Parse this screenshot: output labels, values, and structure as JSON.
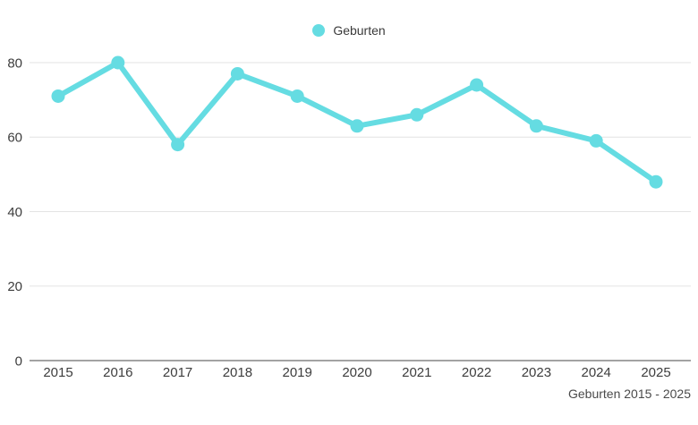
{
  "page": {
    "background": "#ffffff"
  },
  "legend": {
    "items": [
      {
        "label": "Geburten",
        "color": "#65dce2"
      }
    ]
  },
  "footer": {
    "caption": "Geburten 2015 - 2025"
  },
  "chart_data": {
    "type": "line",
    "title": "",
    "xlabel": "",
    "ylabel": "",
    "categories": [
      "2015",
      "2016",
      "2017",
      "2018",
      "2019",
      "2020",
      "2021",
      "2022",
      "2023",
      "2024",
      "2025"
    ],
    "series": [
      {
        "name": "Geburten",
        "color": "#65dce2",
        "values": [
          71,
          80,
          58,
          77,
          71,
          63,
          66,
          74,
          63,
          59,
          48
        ]
      }
    ],
    "ylim": [
      0,
      80
    ],
    "yticks": [
      0,
      20,
      40,
      60,
      80
    ],
    "grid": true,
    "legend_position": "top-center",
    "style": {
      "line_width": 6,
      "point_radius": 7.5,
      "grid_color": "#e3e3e3",
      "axis_color": "#a3a3a3",
      "tick_text_color": "#3d3d3d",
      "caption_color": "#4a4a4a"
    }
  }
}
